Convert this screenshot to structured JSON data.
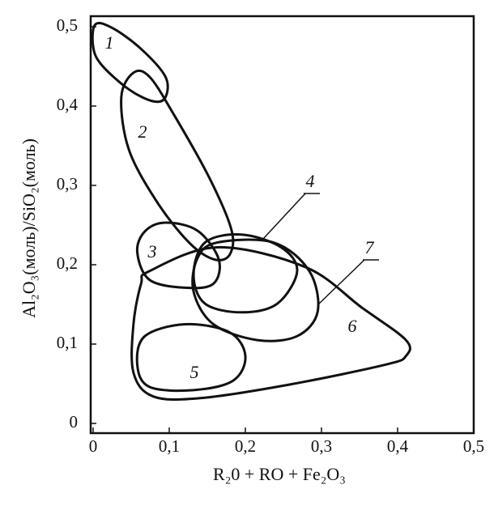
{
  "chart_data": {
    "type": "region",
    "xlabel": "R₂0 + RO + Fe₂O₃",
    "ylabel": "Al₂O₃(моль)/SiO₂(моль)",
    "xlim": [
      0,
      0.5
    ],
    "ylim": [
      0,
      0.5
    ],
    "xticks": [
      0,
      {
        "value": 0.1,
        "label": "0,1"
      },
      {
        "value": 0.2,
        "label": "0,2"
      },
      {
        "value": 0.3,
        "label": "0,3"
      },
      {
        "value": 0.4,
        "label": "0,4"
      },
      {
        "value": 0.5,
        "label": "0,5"
      }
    ],
    "yticks": [
      0,
      {
        "value": 0.1,
        "label": "0,1"
      },
      {
        "value": 0.2,
        "label": "0,2"
      },
      {
        "value": 0.3,
        "label": "0,3"
      },
      {
        "value": 0.4,
        "label": "0,4"
      },
      {
        "value": 0.5,
        "label": "0,5"
      }
    ],
    "color": "#111111",
    "regions": [
      {
        "name": "1",
        "x": [
          0.003,
          0.026,
          0.063,
          0.095,
          0.095,
          0.079,
          0.047,
          0.011,
          0.0
        ],
        "y": [
          0.503,
          0.498,
          0.472,
          0.437,
          0.411,
          0.406,
          0.421,
          0.452,
          0.475
        ]
      },
      {
        "name": "2",
        "x": [
          0.053,
          0.074,
          0.105,
          0.153,
          0.182,
          0.179,
          0.158,
          0.126,
          0.084,
          0.047,
          0.037
        ],
        "y": [
          0.442,
          0.437,
          0.391,
          0.309,
          0.243,
          0.212,
          0.207,
          0.228,
          0.279,
          0.345,
          0.411
        ]
      },
      {
        "name": "3",
        "x": [
          0.095,
          0.137,
          0.165,
          0.158,
          0.121,
          0.074,
          0.058,
          0.068
        ],
        "y": [
          0.253,
          0.243,
          0.207,
          0.176,
          0.171,
          0.181,
          0.216,
          0.242
        ]
      },
      {
        "name": "4",
        "x": [
          0.195,
          0.247,
          0.268,
          0.242,
          0.195,
          0.147,
          0.132,
          0.147
        ],
        "y": [
          0.238,
          0.222,
          0.192,
          0.151,
          0.14,
          0.151,
          0.187,
          0.228
        ]
      },
      {
        "name": "5",
        "x": [
          0.121,
          0.179,
          0.2,
          0.184,
          0.132,
          0.074,
          0.058,
          0.068
        ],
        "y": [
          0.125,
          0.115,
          0.085,
          0.054,
          0.042,
          0.046,
          0.074,
          0.11
        ]
      },
      {
        "name": "6",
        "x": [
          0.074,
          0.163,
          0.279,
          0.353,
          0.411,
          0.411,
          0.384,
          0.258,
          0.142,
          0.079,
          0.053,
          0.053,
          0.063
        ],
        "y": [
          0.192,
          0.222,
          0.197,
          0.146,
          0.105,
          0.085,
          0.074,
          0.049,
          0.032,
          0.034,
          0.064,
          0.125,
          0.176
        ]
      },
      {
        "name": "7",
        "x": [
          0.163,
          0.237,
          0.284,
          0.295,
          0.268,
          0.216,
          0.158,
          0.132,
          0.137
        ],
        "y": [
          0.228,
          0.228,
          0.192,
          0.141,
          0.11,
          0.105,
          0.125,
          0.166,
          0.208
        ]
      }
    ]
  }
}
